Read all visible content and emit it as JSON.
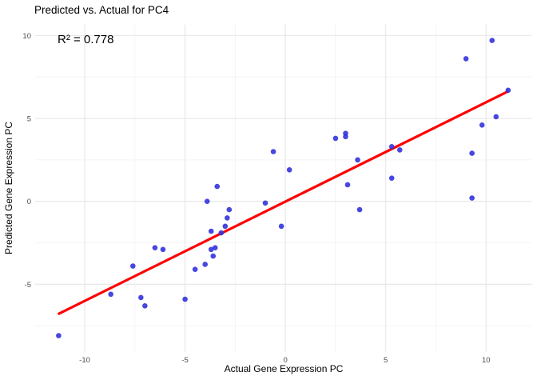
{
  "title": "Predicted vs. Actual for PC4",
  "annotation": "R² = 0.778",
  "x_axis": {
    "label": "Actual Gene Expression PC"
  },
  "y_axis": {
    "label": "Predicted Gene Expression PC"
  },
  "colors": {
    "point": "#3333dd",
    "regression_line": "#ff0000",
    "grid_major": "#e6e6e6",
    "grid_minor": "#f2f2f2",
    "tick_label": "#4d4d4d",
    "text": "#000000",
    "background": "#ffffff"
  },
  "chart_data": {
    "type": "scatter",
    "title": "Predicted vs. Actual for PC4",
    "subtitle_annotation": "R² = 0.778",
    "xlabel": "Actual Gene Expression PC",
    "ylabel": "Predicted Gene Expression PC",
    "xlim": [
      -12.47,
      12.28
    ],
    "ylim": [
      -9.06,
      10.66
    ],
    "x_ticks": [
      -10,
      -5,
      0,
      5,
      10
    ],
    "y_ticks": [
      10,
      5,
      0,
      -5
    ],
    "x_minor_ticks": [
      -7.5,
      -2.5,
      2.5,
      7.5
    ],
    "y_minor_ticks": [
      7.5,
      2.5,
      -2.5,
      -7.5
    ],
    "grid": true,
    "legend_position": "none",
    "points": [
      [
        -11.3,
        -8.1
      ],
      [
        -8.7,
        -5.6
      ],
      [
        -7.6,
        -3.9
      ],
      [
        -7.2,
        -5.8
      ],
      [
        -7.0,
        -6.3
      ],
      [
        -6.5,
        -2.8
      ],
      [
        -6.1,
        -2.9
      ],
      [
        -5.0,
        -5.9
      ],
      [
        -4.5,
        -4.1
      ],
      [
        -4.0,
        -3.8
      ],
      [
        -3.9,
        0.0
      ],
      [
        -3.7,
        -1.8
      ],
      [
        -3.7,
        -2.9
      ],
      [
        -3.6,
        -3.3
      ],
      [
        -3.5,
        -2.8
      ],
      [
        -3.4,
        0.9
      ],
      [
        -3.2,
        -1.9
      ],
      [
        -3.0,
        -1.5
      ],
      [
        -2.9,
        -1.0
      ],
      [
        -2.8,
        -0.5
      ],
      [
        -1.0,
        -0.1
      ],
      [
        -0.6,
        3.0
      ],
      [
        -0.2,
        -1.5
      ],
      [
        0.2,
        1.9
      ],
      [
        2.5,
        3.8
      ],
      [
        3.0,
        4.1
      ],
      [
        3.0,
        3.9
      ],
      [
        3.1,
        1.0
      ],
      [
        3.6,
        2.5
      ],
      [
        3.7,
        -0.5
      ],
      [
        5.3,
        1.4
      ],
      [
        5.3,
        3.3
      ],
      [
        5.7,
        3.1
      ],
      [
        9.0,
        8.6
      ],
      [
        9.3,
        0.2
      ],
      [
        9.3,
        2.9
      ],
      [
        9.8,
        4.6
      ],
      [
        10.3,
        9.7
      ],
      [
        10.5,
        5.1
      ],
      [
        11.1,
        6.7
      ]
    ],
    "regression_line": {
      "x1": -11.33,
      "y1": -6.8,
      "x2": 11.13,
      "y2": 6.65
    }
  }
}
